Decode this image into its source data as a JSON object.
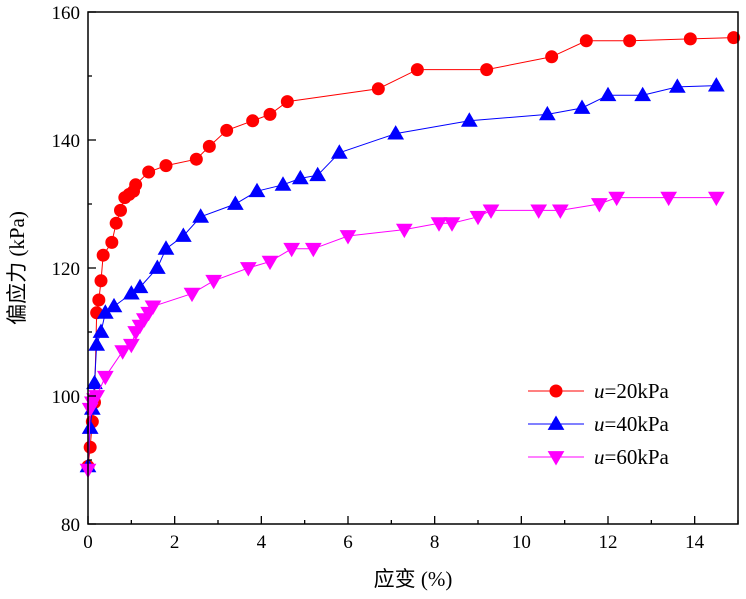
{
  "chart_data": {
    "type": "line",
    "title": "",
    "xlabel": "应变 (%)",
    "ylabel": "偏应力 (kPa)",
    "xlim": [
      0,
      15
    ],
    "ylim": [
      80,
      160
    ],
    "xticks": [
      0,
      2,
      4,
      6,
      8,
      10,
      12,
      14
    ],
    "yticks": [
      80,
      100,
      120,
      140,
      160
    ],
    "grid": false,
    "legend_position": "lower-right",
    "series": [
      {
        "name": "u=20kPa",
        "name_italic": "u",
        "name_rest": "=20kPa",
        "color": "#ff0000",
        "marker": "circle",
        "x": [
          0.0,
          0.05,
          0.1,
          0.15,
          0.2,
          0.25,
          0.3,
          0.35,
          0.55,
          0.65,
          0.75,
          0.85,
          0.95,
          1.05,
          1.1,
          1.4,
          1.8,
          2.5,
          2.8,
          3.2,
          3.8,
          4.2,
          4.6,
          6.7,
          7.6,
          9.2,
          10.7,
          11.5,
          12.5,
          13.9,
          14.9
        ],
        "y": [
          89,
          92,
          96,
          99,
          113,
          115,
          118,
          122,
          124,
          127,
          129,
          131,
          131.5,
          132,
          133,
          135,
          136,
          137,
          139,
          141.5,
          143,
          144,
          146,
          148,
          151,
          151,
          153,
          155.5,
          155.5,
          155.8,
          156
        ]
      },
      {
        "name": "u=40kPa",
        "name_italic": "u",
        "name_rest": "=40kPa",
        "color": "#0000ff",
        "marker": "triangle-up",
        "x": [
          0.0,
          0.05,
          0.1,
          0.15,
          0.2,
          0.3,
          0.4,
          0.6,
          1.0,
          1.2,
          1.6,
          1.8,
          2.2,
          2.6,
          3.4,
          3.9,
          4.5,
          4.9,
          5.3,
          5.8,
          7.1,
          8.8,
          10.6,
          11.4,
          12.0,
          12.8,
          13.6,
          14.5
        ],
        "y": [
          89,
          95,
          98,
          102,
          108,
          110,
          113,
          114,
          116,
          117,
          120,
          123,
          125,
          128,
          130,
          132,
          133,
          134,
          134.5,
          138,
          141,
          143,
          144,
          145,
          147,
          147,
          148.3,
          148.5
        ]
      },
      {
        "name": "u=60kPa",
        "name_italic": "u",
        "name_rest": "=60kPa",
        "color": "#ff00ff",
        "marker": "triangle-down",
        "x": [
          0.0,
          0.05,
          0.1,
          0.15,
          0.2,
          0.4,
          0.8,
          1.0,
          1.1,
          1.2,
          1.3,
          1.4,
          1.5,
          2.4,
          2.9,
          3.7,
          4.2,
          4.7,
          5.2,
          6.0,
          7.3,
          8.1,
          8.4,
          9.0,
          9.3,
          10.4,
          10.9,
          11.8,
          12.2,
          13.4,
          14.5
        ],
        "y": [
          88.5,
          98,
          99,
          99.5,
          100,
          103,
          107,
          108,
          110,
          111,
          112,
          113,
          114,
          116,
          118,
          120,
          121,
          123,
          123,
          125,
          126,
          127,
          127,
          128,
          129,
          129,
          129,
          130,
          131,
          131,
          131
        ]
      }
    ]
  }
}
